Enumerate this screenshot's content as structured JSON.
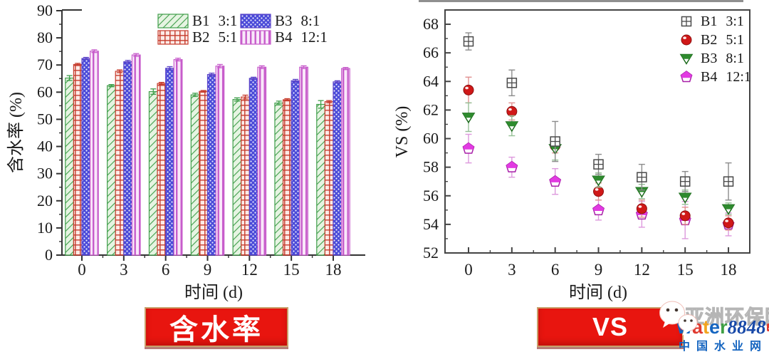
{
  "chart_data": [
    {
      "id": "moisture",
      "type": "bar",
      "title": "",
      "xlabel": "时间 (d)",
      "ylabel": "含水率 (%)",
      "ylim": [
        0,
        90
      ],
      "ytick_step": 10,
      "grid": false,
      "legend_position": "top-inside",
      "categories": [
        "0",
        "3",
        "6",
        "9",
        "12",
        "15",
        "18"
      ],
      "series": [
        {
          "label": "B1",
          "ratio": "3:1",
          "pattern": "diagonal",
          "fill": "#e6f4e2",
          "stroke": "#3f9e4a",
          "values": [
            65.2,
            62.4,
            60.2,
            59.0,
            57.3,
            56.0,
            55.5
          ],
          "errors": [
            0.9,
            0.4,
            1.0,
            0.6,
            0.6,
            0.7,
            1.4
          ]
        },
        {
          "label": "B2",
          "ratio": "5:1",
          "pattern": "grid",
          "fill": "#fcebe7",
          "stroke": "#c63b2c",
          "values": [
            70.2,
            67.7,
            63.2,
            60.3,
            58.2,
            57.2,
            56.5
          ],
          "errors": [
            0.4,
            0.5,
            0.4,
            0.3,
            0.7,
            0.4,
            0.4
          ]
        },
        {
          "label": "B3",
          "ratio": "8:1",
          "pattern": "dots",
          "fill": "#4a4ad8",
          "stroke": "#5b43c8",
          "values": [
            72.4,
            71.2,
            68.8,
            66.5,
            65.1,
            64.2,
            63.8
          ],
          "errors": [
            0.4,
            0.5,
            0.6,
            0.5,
            0.4,
            0.5,
            0.4
          ]
        },
        {
          "label": "B4",
          "ratio": "12:1",
          "pattern": "vertical",
          "fill": "#f9e8fa",
          "stroke": "#c75ccb",
          "values": [
            75.1,
            73.7,
            72.0,
            69.6,
            69.2,
            69.2,
            68.7
          ],
          "errors": [
            0.5,
            0.5,
            0.5,
            0.6,
            0.5,
            0.5,
            0.4
          ]
        }
      ]
    },
    {
      "id": "vs",
      "type": "scatter",
      "title": "",
      "xlabel": "时间 (d)",
      "ylabel": "VS (%)",
      "ylim": [
        52,
        69
      ],
      "yticks": [
        52,
        54,
        56,
        58,
        60,
        62,
        64,
        66,
        68
      ],
      "grid": false,
      "legend_position": "top-right-inside",
      "x": [
        0,
        3,
        6,
        9,
        12,
        15,
        18
      ],
      "xtick_labels": [
        "0",
        "3",
        "6",
        "9",
        "12",
        "15",
        "18"
      ],
      "series": [
        {
          "label": "B1",
          "ratio": "3:1",
          "marker": "square-plus",
          "color": "#4a4a4a",
          "edge": "#4a4a4a",
          "error_color": "#8c8c8c",
          "values": [
            66.8,
            63.9,
            59.8,
            58.2,
            57.3,
            57.0,
            57.0
          ],
          "errors": [
            0.6,
            0.9,
            1.4,
            0.7,
            0.9,
            0.7,
            1.3
          ]
        },
        {
          "label": "B2",
          "ratio": "5:1",
          "marker": "circle",
          "color": "#d01818",
          "edge": "#8e1010",
          "error_color": "#e09090",
          "values": [
            63.4,
            61.9,
            59.5,
            56.3,
            55.1,
            54.6,
            54.1
          ],
          "errors": [
            0.9,
            0.6,
            0.5,
            0.6,
            0.6,
            0.6,
            0.5
          ]
        },
        {
          "label": "B3",
          "ratio": "8:1",
          "marker": "triangle-down",
          "color": "#2e8b2e",
          "edge": "#1d6b1d",
          "error_color": "#96c096",
          "values": [
            61.5,
            60.9,
            59.3,
            57.1,
            56.3,
            55.9,
            55.1
          ],
          "errors": [
            1.0,
            0.7,
            0.8,
            0.5,
            0.5,
            0.5,
            0.4
          ]
        },
        {
          "label": "B4",
          "ratio": "12:1",
          "marker": "pentagon",
          "color": "#e23ae2",
          "edge": "#a81fa8",
          "error_color": "#dd99dd",
          "values": [
            59.3,
            58.0,
            57.0,
            55.0,
            54.7,
            54.3,
            54.0
          ],
          "errors": [
            1.0,
            0.7,
            0.9,
            0.7,
            0.9,
            1.3,
            0.8
          ]
        }
      ]
    }
  ],
  "banners": {
    "left_label": "含水率",
    "right_label": "VS"
  },
  "watermark": {
    "outline_text": "亚洲环保网",
    "brand_letters": [
      {
        "ch": "w",
        "color": "#1565c0"
      },
      {
        "ch": "a",
        "color": "#e03a2f"
      },
      {
        "ch": "t",
        "color": "#f2a41f"
      },
      {
        "ch": "e",
        "color": "#1565c0"
      },
      {
        "ch": "r",
        "color": "#3f9f44"
      }
    ],
    "brand_number": "8848",
    "brand_number_color": "#1849a8",
    "brand_tld": ".com",
    "subtitle": "中国水业网",
    "subtitle_color": "#1565c0"
  }
}
